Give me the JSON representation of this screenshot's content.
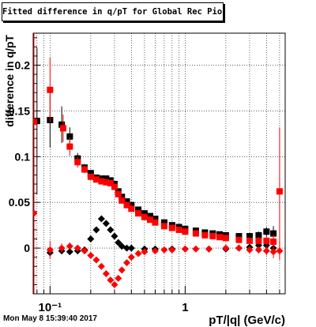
{
  "window": {
    "title": "Fitted difference in q/pT for Global Rec Pion EtapT",
    "timestamp": "Mon May  8 15:39:40 2017"
  },
  "chart_data": {
    "type": "scatter",
    "title": "Fitted difference in q/pT for Global Rec Pion EtapT",
    "xlabel": "pT/|q| (GeV/c)",
    "ylabel": "difference in q/pT",
    "xscale": "log",
    "xlim": [
      0.075,
      5.5
    ],
    "ylim": [
      -0.05,
      0.235
    ],
    "grid": true,
    "x_ticks": [
      {
        "value": 0.1,
        "label": "10⁻¹"
      },
      {
        "value": 1,
        "label": "1"
      }
    ],
    "y_ticks": [
      {
        "value": 0,
        "label": "0"
      },
      {
        "value": 0.05,
        "label": "0.05"
      },
      {
        "value": 0.1,
        "label": "0.1"
      },
      {
        "value": 0.15,
        "label": "0.15"
      },
      {
        "value": 0.2,
        "label": "0.2"
      }
    ],
    "series": [
      {
        "color": "#000000",
        "marker": "square",
        "points": [
          [
            0.08,
            0.139,
            0.08
          ],
          [
            0.1,
            0.14,
            0.03
          ],
          [
            0.122,
            0.135,
            0.02
          ],
          [
            0.14,
            0.122,
            0.01
          ],
          [
            0.16,
            0.098,
            0.006
          ],
          [
            0.18,
            0.088,
            0.004
          ],
          [
            0.2,
            0.082,
            0.003
          ],
          [
            0.22,
            0.077,
            0.003
          ],
          [
            0.24,
            0.076,
            0.002
          ],
          [
            0.26,
            0.076,
            0.002
          ],
          [
            0.28,
            0.074,
            0.002
          ],
          [
            0.3,
            0.07,
            0.002
          ],
          [
            0.32,
            0.062,
            0.002
          ],
          [
            0.34,
            0.056,
            0.002
          ],
          [
            0.37,
            0.051,
            0.001
          ],
          [
            0.4,
            0.047,
            0.001
          ],
          [
            0.45,
            0.042,
            0.001
          ],
          [
            0.5,
            0.038,
            0.001
          ],
          [
            0.55,
            0.035,
            0.001
          ],
          [
            0.6,
            0.032,
            0.001
          ],
          [
            0.7,
            0.028,
            0.001
          ],
          [
            0.8,
            0.025,
            0.001
          ],
          [
            0.9,
            0.023,
            0.001
          ],
          [
            1.0,
            0.021,
            0.001
          ],
          [
            1.2,
            0.019,
            0.001
          ],
          [
            1.4,
            0.017,
            0.001
          ],
          [
            1.6,
            0.016,
            0.001
          ],
          [
            1.8,
            0.015,
            0.001
          ],
          [
            2.0,
            0.014,
            0.001
          ],
          [
            2.5,
            0.013,
            0.002
          ],
          [
            3.0,
            0.013,
            0.003
          ],
          [
            3.5,
            0.014,
            0.004
          ],
          [
            4.0,
            0.018,
            0.005
          ],
          [
            4.5,
            0.016,
            0.008
          ]
        ]
      },
      {
        "color": "#000000",
        "marker": "diamond",
        "points": [
          [
            0.1,
            -0.005,
            0.004
          ],
          [
            0.122,
            -0.003,
            0.003
          ],
          [
            0.14,
            -0.004,
            0.003
          ],
          [
            0.16,
            -0.003,
            0.002
          ],
          [
            0.18,
            -0.002,
            0.002
          ],
          [
            0.2,
            0.01,
            0.002
          ],
          [
            0.22,
            0.02,
            0.002
          ],
          [
            0.24,
            0.032,
            0.002
          ],
          [
            0.26,
            0.027,
            0.002
          ],
          [
            0.28,
            0.02,
            0.001
          ],
          [
            0.3,
            0.013,
            0.001
          ],
          [
            0.32,
            0.006,
            0.001
          ],
          [
            0.34,
            0.002,
            0.001
          ],
          [
            0.37,
            0.0,
            0.001
          ],
          [
            0.4,
            0.0,
            0.001
          ],
          [
            0.5,
            -0.001,
            0.001
          ],
          [
            0.6,
            -0.001,
            0.001
          ],
          [
            0.8,
            -0.001,
            0.001
          ],
          [
            1.0,
            -0.001,
            0.001
          ],
          [
            1.5,
            -0.001,
            0.001
          ],
          [
            2.0,
            -0.001,
            0.001
          ],
          [
            2.5,
            0.0,
            0.001
          ],
          [
            3.0,
            0.001,
            0.002
          ],
          [
            3.5,
            0.003,
            0.003
          ],
          [
            4.0,
            0.003,
            0.004
          ],
          [
            4.5,
            0.0,
            0.006
          ]
        ]
      },
      {
        "color": "#ff0000",
        "marker": "square",
        "points": [
          [
            0.076,
            0.138,
            0.1
          ],
          [
            0.1,
            0.173,
            0.035
          ],
          [
            0.125,
            0.131,
            0.015
          ],
          [
            0.14,
            0.111,
            0.01
          ],
          [
            0.16,
            0.094,
            0.006
          ],
          [
            0.18,
            0.086,
            0.004
          ],
          [
            0.2,
            0.078,
            0.003
          ],
          [
            0.22,
            0.075,
            0.003
          ],
          [
            0.24,
            0.073,
            0.003
          ],
          [
            0.26,
            0.072,
            0.002
          ],
          [
            0.28,
            0.071,
            0.002
          ],
          [
            0.3,
            0.067,
            0.002
          ],
          [
            0.32,
            0.059,
            0.002
          ],
          [
            0.34,
            0.052,
            0.002
          ],
          [
            0.37,
            0.047,
            0.001
          ],
          [
            0.4,
            0.043,
            0.001
          ],
          [
            0.45,
            0.038,
            0.001
          ],
          [
            0.5,
            0.034,
            0.001
          ],
          [
            0.55,
            0.031,
            0.001
          ],
          [
            0.6,
            0.028,
            0.001
          ],
          [
            0.7,
            0.024,
            0.001
          ],
          [
            0.8,
            0.022,
            0.001
          ],
          [
            0.9,
            0.02,
            0.001
          ],
          [
            1.0,
            0.018,
            0.001
          ],
          [
            1.2,
            0.016,
            0.001
          ],
          [
            1.4,
            0.014,
            0.001
          ],
          [
            1.6,
            0.013,
            0.001
          ],
          [
            1.8,
            0.012,
            0.001
          ],
          [
            2.0,
            0.011,
            0.001
          ],
          [
            2.5,
            0.009,
            0.002
          ],
          [
            3.0,
            0.008,
            0.003
          ],
          [
            3.5,
            0.008,
            0.004
          ],
          [
            4.0,
            0.008,
            0.005
          ],
          [
            4.5,
            0.007,
            0.008
          ],
          [
            5.0,
            0.062,
            0.07
          ]
        ]
      },
      {
        "color": "#ff0000",
        "marker": "diamond",
        "points": [
          [
            0.076,
            0.038,
            0.12
          ],
          [
            0.1,
            -0.002,
            0.01
          ],
          [
            0.122,
            0.0,
            0.005
          ],
          [
            0.14,
            0.002,
            0.004
          ],
          [
            0.16,
            0.0,
            0.003
          ],
          [
            0.18,
            -0.003,
            0.002
          ],
          [
            0.2,
            -0.008,
            0.002
          ],
          [
            0.22,
            -0.013,
            0.002
          ],
          [
            0.24,
            -0.02,
            0.002
          ],
          [
            0.26,
            -0.028,
            0.002
          ],
          [
            0.28,
            -0.035,
            0.002
          ],
          [
            0.3,
            -0.04,
            0.002
          ],
          [
            0.32,
            -0.033,
            0.002
          ],
          [
            0.34,
            -0.024,
            0.002
          ],
          [
            0.37,
            -0.016,
            0.001
          ],
          [
            0.4,
            -0.01,
            0.001
          ],
          [
            0.45,
            -0.006,
            0.001
          ],
          [
            0.5,
            -0.004,
            0.001
          ],
          [
            0.6,
            -0.003,
            0.001
          ],
          [
            0.7,
            -0.002,
            0.001
          ],
          [
            0.8,
            -0.002,
            0.001
          ],
          [
            1.0,
            -0.001,
            0.001
          ],
          [
            1.2,
            -0.001,
            0.001
          ],
          [
            1.5,
            -0.001,
            0.001
          ],
          [
            2.0,
            0.0,
            0.001
          ],
          [
            2.5,
            0.0,
            0.002
          ],
          [
            3.0,
            -0.002,
            0.003
          ],
          [
            3.5,
            -0.002,
            0.004
          ],
          [
            4.0,
            -0.003,
            0.005
          ],
          [
            4.5,
            -0.004,
            0.007
          ],
          [
            5.0,
            -0.003,
            0.01
          ]
        ]
      }
    ]
  }
}
